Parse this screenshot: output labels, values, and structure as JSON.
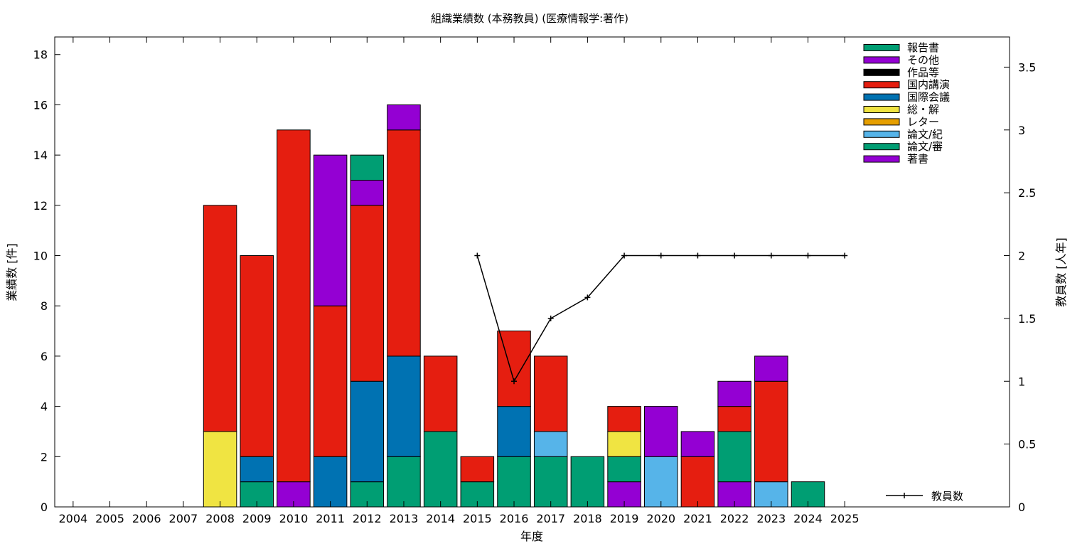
{
  "chart_data": {
    "type": "bar",
    "stacked": true,
    "title": "組織業績数 (本務教員) (医療情報学:著作)",
    "xlabel": "年度",
    "ylabel": "業績数 [件]",
    "y2label": "教員数 [人年]",
    "ylim": [
      0,
      18.7
    ],
    "y2lim": [
      0,
      3.74
    ],
    "yticks": [
      0,
      2,
      4,
      6,
      8,
      10,
      12,
      14,
      16,
      18
    ],
    "y2ticks": [
      "0",
      "0.5",
      "1",
      "1.5",
      "2",
      "2.5",
      "3",
      "3.5"
    ],
    "y2tick_values": [
      0,
      0.5,
      1,
      1.5,
      2,
      2.5,
      3,
      3.5
    ],
    "grid": false,
    "legend_position": "top-right",
    "categories": [
      "2004",
      "2005",
      "2006",
      "2007",
      "2008",
      "2009",
      "2010",
      "2011",
      "2012",
      "2013",
      "2014",
      "2015",
      "2016",
      "2017",
      "2018",
      "2019",
      "2020",
      "2021",
      "2022",
      "2023",
      "2024",
      "2025"
    ],
    "series": [
      {
        "name": "著書",
        "color": "#9400d3",
        "values": [
          0,
          0,
          0,
          0,
          0,
          0,
          1,
          0,
          0,
          0,
          0,
          0,
          0,
          0,
          0,
          1,
          0,
          0,
          1,
          0,
          0,
          0
        ]
      },
      {
        "name": "論文/審",
        "color": "#009e73",
        "values": [
          0,
          0,
          0,
          0,
          0,
          1,
          0,
          0,
          1,
          2,
          3,
          1,
          2,
          2,
          2,
          1,
          0,
          0,
          2,
          0,
          1,
          0
        ]
      },
      {
        "name": "論文/紀",
        "color": "#56b4e9",
        "values": [
          0,
          0,
          0,
          0,
          0,
          0,
          0,
          0,
          0,
          0,
          0,
          0,
          0,
          1,
          0,
          0,
          2,
          0,
          0,
          1,
          0,
          0
        ]
      },
      {
        "name": "レター",
        "color": "#e69f00",
        "values": [
          0,
          0,
          0,
          0,
          0,
          0,
          0,
          0,
          0,
          0,
          0,
          0,
          0,
          0,
          0,
          0,
          0,
          0,
          0,
          0,
          0,
          0
        ]
      },
      {
        "name": "総・解",
        "color": "#f0e442",
        "values": [
          0,
          0,
          0,
          0,
          3,
          0,
          0,
          0,
          0,
          0,
          0,
          0,
          0,
          0,
          0,
          1,
          0,
          0,
          0,
          0,
          0,
          0
        ]
      },
      {
        "name": "国際会議",
        "color": "#0072b2",
        "values": [
          0,
          0,
          0,
          0,
          0,
          1,
          0,
          2,
          4,
          4,
          0,
          0,
          2,
          0,
          0,
          0,
          0,
          0,
          0,
          0,
          0,
          0
        ]
      },
      {
        "name": "国内講演",
        "color": "#e51e10",
        "values": [
          0,
          0,
          0,
          0,
          9,
          8,
          14,
          6,
          7,
          9,
          3,
          1,
          3,
          3,
          0,
          1,
          0,
          2,
          1,
          4,
          0,
          0
        ]
      },
      {
        "name": "作品等",
        "color": "#000000",
        "values": [
          0,
          0,
          0,
          0,
          0,
          0,
          0,
          0,
          0,
          0,
          0,
          0,
          0,
          0,
          0,
          0,
          0,
          0,
          0,
          0,
          0,
          0
        ]
      },
      {
        "name": "その他",
        "color": "#9400d3",
        "values": [
          0,
          0,
          0,
          0,
          0,
          0,
          0,
          6,
          1,
          1,
          0,
          0,
          0,
          0,
          0,
          0,
          2,
          1,
          1,
          1,
          0,
          0
        ]
      },
      {
        "name": "報告書",
        "color": "#009e73",
        "values": [
          0,
          0,
          0,
          0,
          0,
          0,
          0,
          0,
          1,
          0,
          0,
          0,
          0,
          0,
          0,
          0,
          0,
          0,
          0,
          0,
          0,
          0
        ]
      }
    ],
    "line_series": {
      "name": "教員数",
      "color": "#000000",
      "axis": "y2",
      "x": [
        "2015",
        "2016",
        "2017",
        "2018",
        "2019",
        "2020",
        "2021",
        "2022",
        "2023",
        "2024",
        "2025"
      ],
      "values": [
        2,
        1,
        1.5,
        1.667,
        2,
        2,
        2,
        2,
        2,
        2,
        2
      ]
    },
    "legend_order": [
      "報告書",
      "その他",
      "作品等",
      "国内講演",
      "国際会議",
      "総・解",
      "レター",
      "論文/紀",
      "論文/審",
      "著書"
    ]
  }
}
